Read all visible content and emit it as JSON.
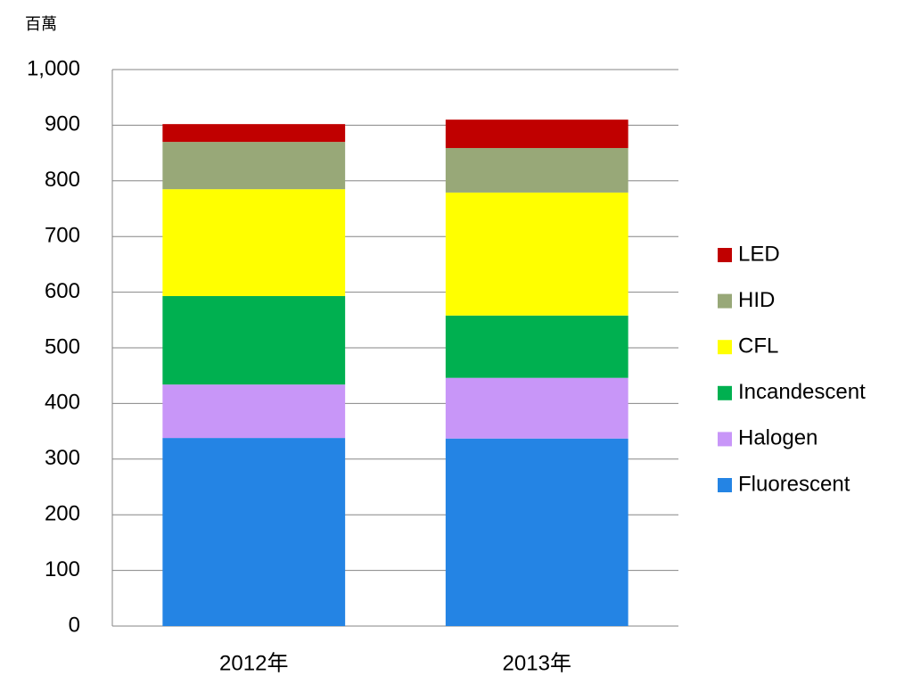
{
  "chart_data": {
    "type": "stacked_bar",
    "y_label": "百萬",
    "categories": [
      "2012年",
      "2013年"
    ],
    "series": [
      {
        "name": "Fluorescent",
        "color": "#2484e4",
        "values": [
          338,
          337
        ]
      },
      {
        "name": "Halogen",
        "color": "#c896f8",
        "values": [
          96,
          109
        ]
      },
      {
        "name": "Incandescent",
        "color": "#00b050",
        "values": [
          159,
          112
        ]
      },
      {
        "name": "CFL",
        "color": "#ffff00",
        "values": [
          192,
          221
        ]
      },
      {
        "name": "HID",
        "color": "#98a878",
        "values": [
          85,
          80
        ]
      },
      {
        "name": "LED",
        "color": "#c00000",
        "values": [
          32,
          51
        ]
      }
    ],
    "ylim": [
      0,
      1000
    ],
    "yticks": [
      0,
      100,
      200,
      300,
      400,
      500,
      600,
      700,
      800,
      900,
      {
        "value": 1000,
        "label": "1,000"
      }
    ],
    "grid": true,
    "legend": "right"
  }
}
